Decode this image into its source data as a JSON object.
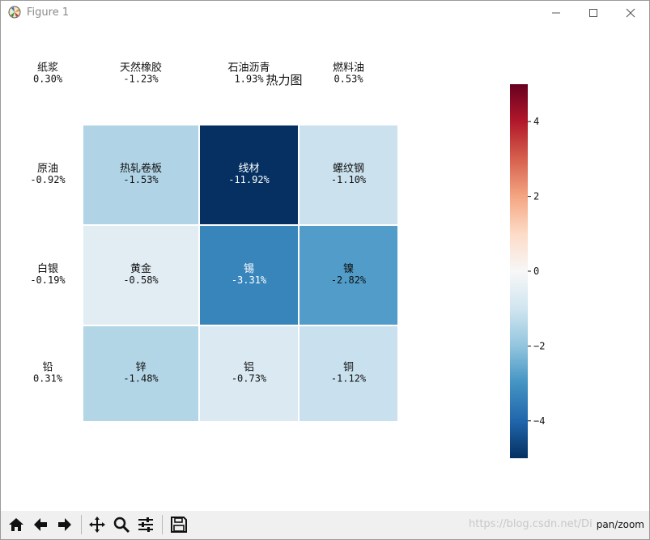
{
  "window": {
    "title": "Figure 1"
  },
  "toolbar": {
    "status": "pan/zoom",
    "watermark": "https://blog.csdn.net/Di",
    "buttons": [
      "home-icon",
      "back-icon",
      "forward-icon",
      "pan-icon",
      "zoom-icon",
      "configure-subplots-icon",
      "save-icon"
    ]
  },
  "chart_data": {
    "type": "heatmap",
    "title": "热力图",
    "rows": [
      [
        {
          "name": "纸浆",
          "value": 0.3,
          "label": "0.30%"
        },
        {
          "name": "天然橡胶",
          "value": -1.23,
          "label": "-1.23%"
        },
        {
          "name": "石油沥青",
          "value": 1.93,
          "label": "1.93%"
        },
        {
          "name": "燃料油",
          "value": 0.53,
          "label": "0.53%"
        }
      ],
      [
        {
          "name": "原油",
          "value": -0.92,
          "label": "-0.92%"
        },
        {
          "name": "热轧卷板",
          "value": -1.53,
          "label": "-1.53%"
        },
        {
          "name": "线材",
          "value": -11.92,
          "label": "-11.92%"
        },
        {
          "name": "螺纹钢",
          "value": -1.1,
          "label": "-1.10%"
        }
      ],
      [
        {
          "name": "白银",
          "value": -0.19,
          "label": "-0.19%"
        },
        {
          "name": "黄金",
          "value": -0.58,
          "label": "-0.58%"
        },
        {
          "name": "锡",
          "value": -3.31,
          "label": "-3.31%"
        },
        {
          "name": "镍",
          "value": -2.82,
          "label": "-2.82%"
        }
      ],
      [
        {
          "name": "铅",
          "value": 0.31,
          "label": "0.31%"
        },
        {
          "name": "锌",
          "value": -1.48,
          "label": "-1.48%"
        },
        {
          "name": "铝",
          "value": -0.73,
          "label": "-0.73%"
        },
        {
          "name": "铜",
          "value": -1.12,
          "label": "-1.12%"
        }
      ]
    ],
    "colormap": "RdBu_r",
    "vmin": -5,
    "vmax": 5,
    "colorbar_ticks": [
      4,
      2,
      0,
      -2,
      -4
    ],
    "grid": true,
    "legend": "none",
    "colorbar_position": "right"
  }
}
